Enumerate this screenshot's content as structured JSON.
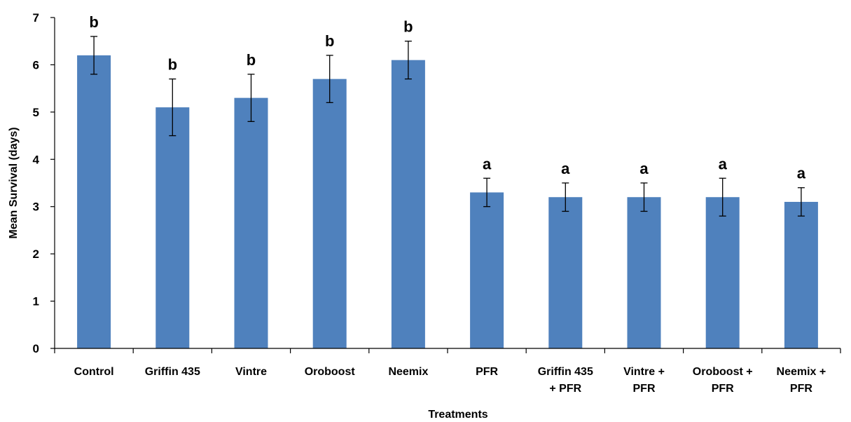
{
  "chart_data": {
    "type": "bar",
    "title": "",
    "xlabel": "Treatments",
    "ylabel": "Mean Survival (days)",
    "ylim": [
      0,
      7
    ],
    "yticks": [
      "0",
      "1",
      "2",
      "3",
      "4",
      "5",
      "6",
      "7"
    ],
    "grid": false,
    "legend": "none",
    "bar_color": "#4F81BD",
    "categories": [
      [
        "Control"
      ],
      [
        "Griffin 435"
      ],
      [
        "Vintre"
      ],
      [
        "Oroboost"
      ],
      [
        "Neemix"
      ],
      [
        "PFR"
      ],
      [
        "Griffin 435",
        "+ PFR"
      ],
      [
        "Vintre +",
        "PFR"
      ],
      [
        "Oroboost +",
        "PFR"
      ],
      [
        "Neemix +",
        "PFR"
      ]
    ],
    "values": [
      6.2,
      5.1,
      5.3,
      5.7,
      6.1,
      3.3,
      3.2,
      3.2,
      3.2,
      3.1
    ],
    "error_low": [
      5.8,
      4.5,
      4.8,
      5.2,
      5.7,
      3.0,
      2.9,
      2.9,
      2.8,
      2.8
    ],
    "error_high": [
      6.6,
      5.7,
      5.8,
      6.2,
      6.5,
      3.6,
      3.5,
      3.5,
      3.6,
      3.4
    ],
    "significance_letters": [
      "b",
      "b",
      "b",
      "b",
      "b",
      "a",
      "a",
      "a",
      "a",
      "a"
    ]
  }
}
